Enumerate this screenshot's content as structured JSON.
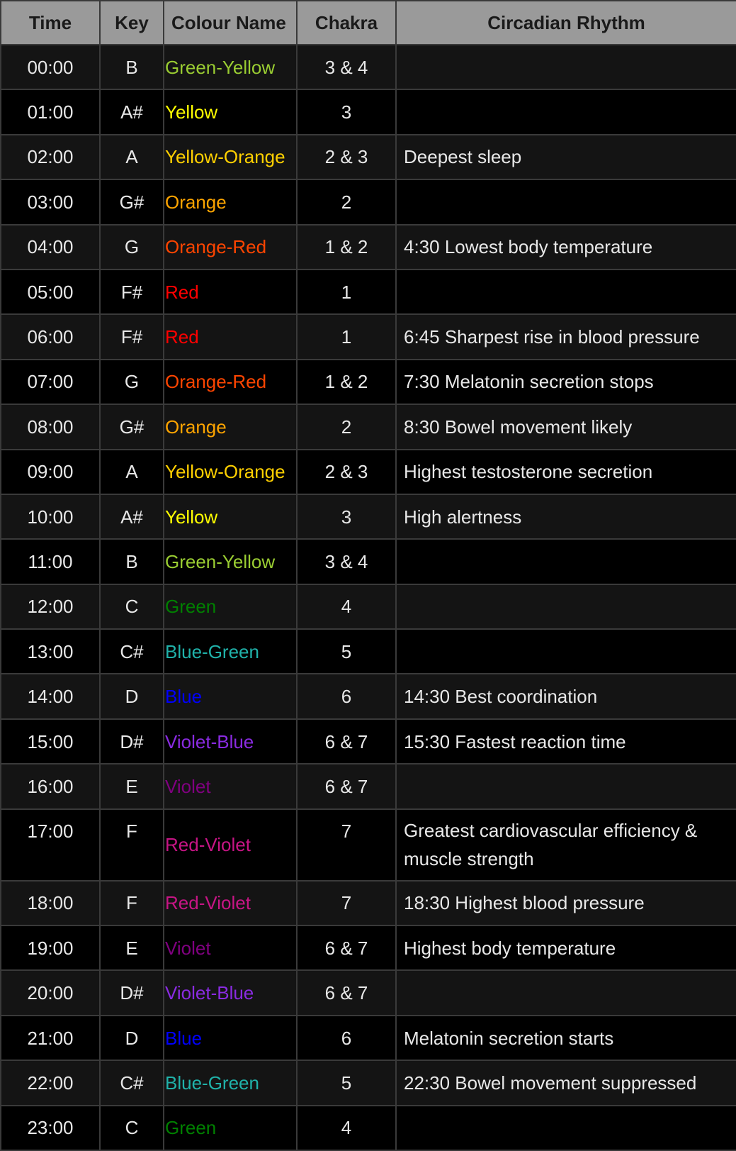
{
  "headers": {
    "time": "Time",
    "key": "Key",
    "colour": "Colour Name",
    "chakra": "Chakra",
    "rhythm": "Circadian Rhythm"
  },
  "colours": {
    "Green-Yellow": "#9acd32",
    "Yellow": "#ffff00",
    "Yellow-Orange": "#ffd000",
    "Orange": "#ffa500",
    "Orange-Red": "#ff4500",
    "Red": "#ff0000",
    "Green": "#008000",
    "Blue-Green": "#20b2aa",
    "Blue": "#0000ff",
    "Violet-Blue": "#8a2be2",
    "Violet": "#800080",
    "Red-Violet": "#c71585"
  },
  "rows": [
    {
      "time": "00:00",
      "key": "B",
      "colour": "Green-Yellow",
      "chakra": "3 & 4",
      "rhythm": ""
    },
    {
      "time": "01:00",
      "key": "A#",
      "colour": "Yellow",
      "chakra": "3",
      "rhythm": ""
    },
    {
      "time": "02:00",
      "key": "A",
      "colour": "Yellow-Orange",
      "chakra": "2 & 3",
      "rhythm": "Deepest sleep"
    },
    {
      "time": "03:00",
      "key": "G#",
      "colour": "Orange",
      "chakra": "2",
      "rhythm": ""
    },
    {
      "time": "04:00",
      "key": "G",
      "colour": "Orange-Red",
      "chakra": "1 & 2",
      "rhythm": "4:30 Lowest body temperature"
    },
    {
      "time": "05:00",
      "key": "F#",
      "colour": "Red",
      "chakra": "1",
      "rhythm": ""
    },
    {
      "time": "06:00",
      "key": "F#",
      "colour": "Red",
      "chakra": "1",
      "rhythm": "6:45 Sharpest rise in blood pressure"
    },
    {
      "time": "07:00",
      "key": "G",
      "colour": "Orange-Red",
      "chakra": "1 & 2",
      "rhythm": "7:30 Melatonin secretion stops"
    },
    {
      "time": "08:00",
      "key": "G#",
      "colour": "Orange",
      "chakra": "2",
      "rhythm": "8:30 Bowel movement likely"
    },
    {
      "time": "09:00",
      "key": "A",
      "colour": "Yellow-Orange",
      "chakra": "2 & 3",
      "rhythm": "Highest testosterone secretion"
    },
    {
      "time": "10:00",
      "key": "A#",
      "colour": "Yellow",
      "chakra": "3",
      "rhythm": "High alertness"
    },
    {
      "time": "11:00",
      "key": "B",
      "colour": "Green-Yellow",
      "chakra": "3 & 4",
      "rhythm": ""
    },
    {
      "time": "12:00",
      "key": "C",
      "colour": "Green",
      "chakra": "4",
      "rhythm": ""
    },
    {
      "time": "13:00",
      "key": "C#",
      "colour": "Blue-Green",
      "chakra": "5",
      "rhythm": ""
    },
    {
      "time": "14:00",
      "key": "D",
      "colour": "Blue",
      "chakra": "6",
      "rhythm": "14:30 Best coordination"
    },
    {
      "time": "15:00",
      "key": "D#",
      "colour": "Violet-Blue",
      "chakra": "6 & 7",
      "rhythm": "15:30 Fastest reaction time"
    },
    {
      "time": "16:00",
      "key": "E",
      "colour": "Violet",
      "chakra": "6 & 7",
      "rhythm": ""
    },
    {
      "time": "17:00",
      "key": "F",
      "colour": "Red-Violet",
      "chakra": "7",
      "rhythm": "Greatest cardiovascular efficiency & muscle strength"
    },
    {
      "time": "18:00",
      "key": "F",
      "colour": "Red-Violet",
      "chakra": "7",
      "rhythm": "18:30 Highest blood pressure"
    },
    {
      "time": "19:00",
      "key": "E",
      "colour": "Violet",
      "chakra": "6 & 7",
      "rhythm": "Highest body temperature"
    },
    {
      "time": "20:00",
      "key": "D#",
      "colour": "Violet-Blue",
      "chakra": "6 & 7",
      "rhythm": ""
    },
    {
      "time": "21:00",
      "key": "D",
      "colour": "Blue",
      "chakra": "6",
      "rhythm": "Melatonin secretion starts"
    },
    {
      "time": "22:00",
      "key": "C#",
      "colour": "Blue-Green",
      "chakra": "5",
      "rhythm": "22:30 Bowel movement suppressed"
    },
    {
      "time": "23:00",
      "key": "C",
      "colour": "Green",
      "chakra": "4",
      "rhythm": ""
    }
  ]
}
